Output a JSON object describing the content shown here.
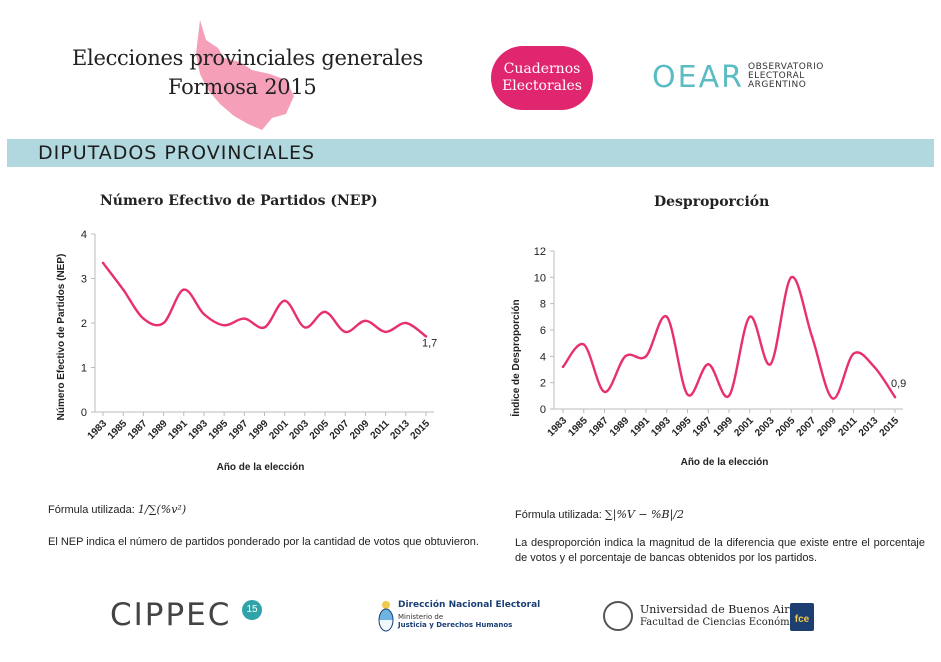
{
  "header": {
    "title_line1": "Elecciones provinciales generales",
    "title_line2": "Formosa 2015",
    "badge_line1": "Cuadernos",
    "badge_line2": "Electorales",
    "oear_mark": "OEAR",
    "oear_line1": "OBSERVATORIO",
    "oear_line2": "ELECTORAL",
    "oear_line3": "ARGENTINO",
    "accent_color": "#e0266e",
    "province_shape_color": "#f49ab4"
  },
  "section": {
    "title": "DIPUTADOS PROVINCIALES",
    "banner_color": "#b1d8df"
  },
  "left_panel": {
    "formula_label": "Fórmula utilizada:",
    "formula": "1/∑(%v²)",
    "description": "El NEP indica el número de partidos ponderado por la cantidad de votos que obtuvieron."
  },
  "right_panel": {
    "formula_label": "Fórmula utilizada:",
    "formula": "∑|%V − %B|/2",
    "description": "La desproporción indica la magnitud de la diferencia que existe entre el porcentaje de votos y el porcentaje de bancas obtenidos por los partidos."
  },
  "chart_data": [
    {
      "type": "line",
      "title": "Número Efectivo de Partidos (NEP)",
      "xlabel": "Año de la elección",
      "ylabel": "Número Efectivo de Partidos (NEP)",
      "ylim": [
        0,
        4
      ],
      "yticks": [
        0,
        1,
        2,
        3,
        4
      ],
      "categories": [
        "1983",
        "1985",
        "1987",
        "1989",
        "1991",
        "1993",
        "1995",
        "1997",
        "1999",
        "2001",
        "2003",
        "2005",
        "2007",
        "2009",
        "2011",
        "2013",
        "2015"
      ],
      "values": [
        3.35,
        2.75,
        2.1,
        2.0,
        2.75,
        2.2,
        1.95,
        2.1,
        1.9,
        2.5,
        1.9,
        2.25,
        1.8,
        2.05,
        1.8,
        2.0,
        1.7
      ],
      "last_label": "1,7",
      "line_color": "#e8306f"
    },
    {
      "type": "line",
      "title": "Desproporción",
      "xlabel": "Año de la elección",
      "ylabel": "Índice de Desproporción",
      "ylim": [
        0,
        12
      ],
      "yticks": [
        0,
        2,
        4,
        6,
        8,
        10,
        12
      ],
      "categories": [
        "1983",
        "1985",
        "1987",
        "1989",
        "1991",
        "1993",
        "1995",
        "1997",
        "1999",
        "2001",
        "2003",
        "2005",
        "2007",
        "2009",
        "2011",
        "2013",
        "2015"
      ],
      "values": [
        3.2,
        4.9,
        1.3,
        4.0,
        4.0,
        7.0,
        1.1,
        3.4,
        1.0,
        7.0,
        3.4,
        10.0,
        5.5,
        0.8,
        4.2,
        3.2,
        0.9
      ],
      "last_label": "0,9",
      "line_color": "#e8306f"
    }
  ],
  "footer": {
    "cippec": "CIPPEC",
    "cippec_badge": "15",
    "dne_title": "Dirección Nacional Electoral",
    "dne_sub1": "Ministerio de",
    "dne_sub2": "Justicia y Derechos Humanos",
    "uba_line1": "Universidad de Buenos Aires",
    "uba_line2": "Facultad de Ciencias Económicas",
    "fce": "fce"
  }
}
